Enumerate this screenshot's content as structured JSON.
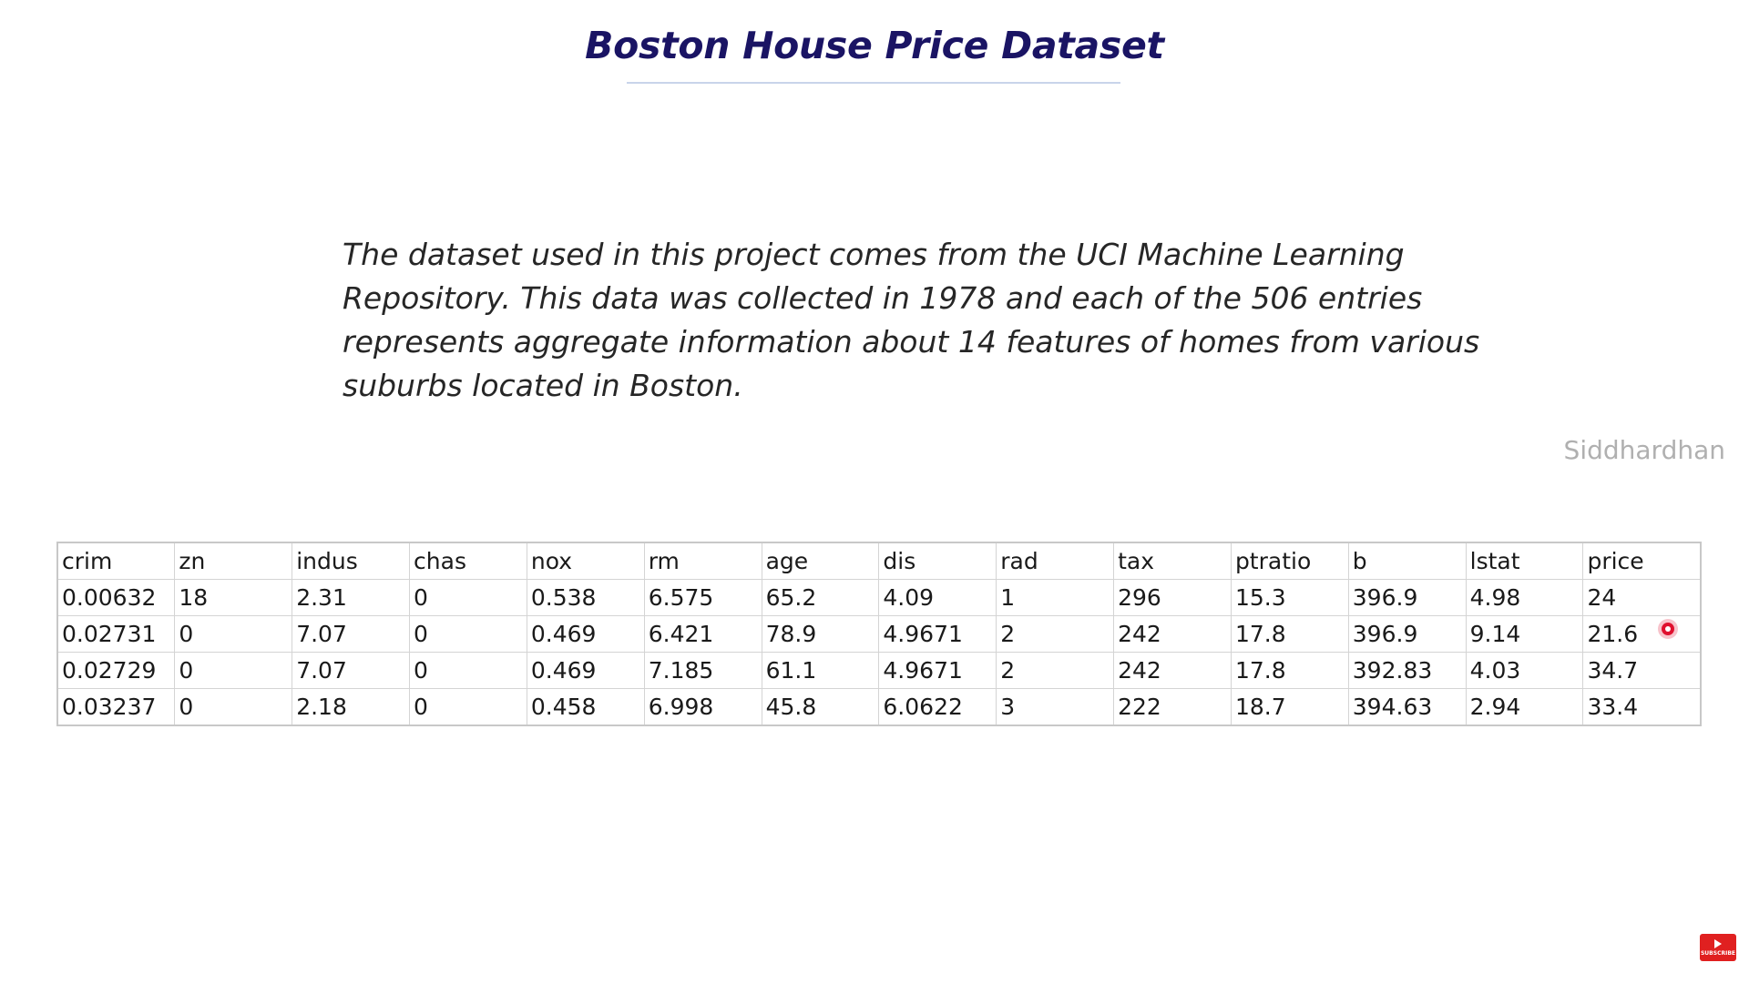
{
  "slide": {
    "title": "Boston House Price Dataset",
    "description": "The dataset used in this project comes from the UCI Machine Learning Repository. This data was collected in 1978 and each of the 506 entries represents aggregate information about 14 features of homes from various suburbs located in Boston.",
    "author": "Siddhardhan"
  },
  "table": {
    "columns": [
      "crim",
      "zn",
      "indus",
      "chas",
      "nox",
      "rm",
      "age",
      "dis",
      "rad",
      "tax",
      "ptratio",
      "b",
      "lstat",
      "price"
    ],
    "rows": [
      [
        "0.00632",
        "18",
        "2.31",
        "0",
        "0.538",
        "6.575",
        "65.2",
        "4.09",
        "1",
        "296",
        "15.3",
        "396.9",
        "4.98",
        "24"
      ],
      [
        "0.02731",
        "0",
        "7.07",
        "0",
        "0.469",
        "6.421",
        "78.9",
        "4.9671",
        "2",
        "242",
        "17.8",
        "396.9",
        "9.14",
        "21.6"
      ],
      [
        "0.02729",
        "0",
        "7.07",
        "0",
        "0.469",
        "7.185",
        "61.1",
        "4.9671",
        "2",
        "242",
        "17.8",
        "392.83",
        "4.03",
        "34.7"
      ],
      [
        "0.03237",
        "0",
        "2.18",
        "0",
        "0.458",
        "6.998",
        "45.8",
        "6.0622",
        "3",
        "222",
        "18.7",
        "394.63",
        "2.94",
        "33.4"
      ]
    ]
  },
  "badge": {
    "label": "SUBSCRIBE",
    "icon": "play-icon",
    "color": "#e02020"
  },
  "colors": {
    "title": "#1a1464",
    "text": "#262626",
    "watermark": "#b0b0b0",
    "cursor": "#e0102e"
  }
}
